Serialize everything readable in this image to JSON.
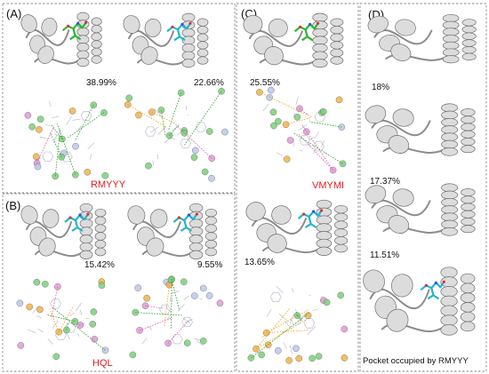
{
  "panels": {
    "A": {
      "label": "(A)",
      "pct_left": "38.99%",
      "pct_right": "22.66%",
      "ligand": "RMYYY",
      "ligand_color": "#e8191f",
      "ligand_colors": [
        "#27b82e",
        "#23b4d0"
      ]
    },
    "B": {
      "label": "(B)",
      "pct_left": "15.42%",
      "pct_right": "9.55%",
      "ligand": "HQL",
      "ligand_color": "#e8191f",
      "ligand_colors": [
        "#23b4d0",
        "#23b4d0"
      ]
    },
    "C": {
      "label": "(C)",
      "pct_top": "25.55%",
      "pct_bottom": "13.65%",
      "ligand": "VMYMI",
      "ligand_color": "#e8191f",
      "ligand_colors": [
        "#27b82e",
        "#23b4d0"
      ]
    },
    "D": {
      "label": "(D)",
      "pcts": [
        "18%",
        "17.37%",
        "11.51%"
      ],
      "caption": "Pocket occupied by RMYYY",
      "ligand_colors": [
        "#23b4d0"
      ]
    }
  },
  "colors": {
    "protein_ribbon": "#dcdcdc",
    "residue_green": "#7bd179",
    "residue_pink": "#e39ad7",
    "residue_orange": "#f3b347",
    "residue_blue": "#b9c8ef",
    "hbond_green": "#2ca02c",
    "pi_orange": "#f0a020",
    "pi_pink": "#e05ab5"
  }
}
